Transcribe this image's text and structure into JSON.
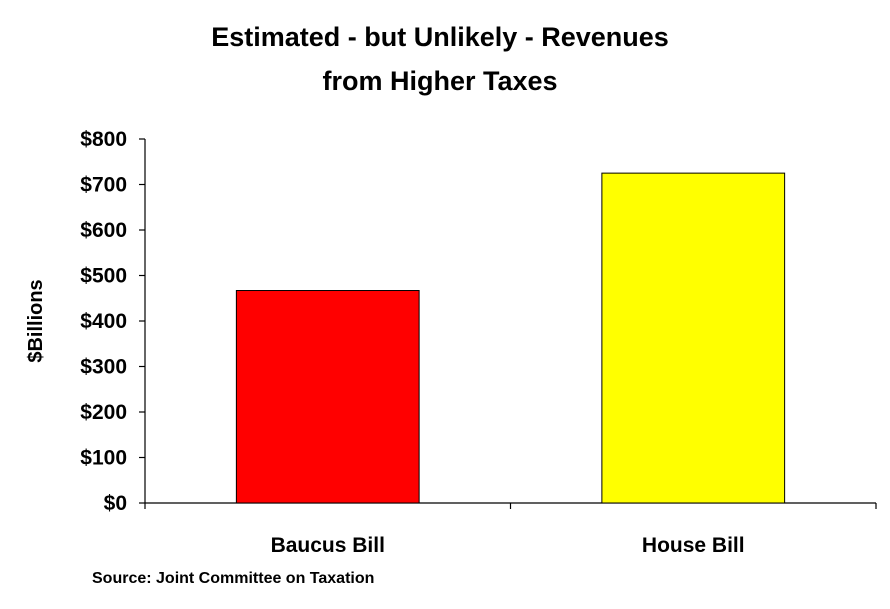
{
  "chart_data": {
    "type": "bar",
    "title_line1": "Estimated - but Unlikely - Revenues",
    "title_line2": "from Higher Taxes",
    "ylabel": "$Billions",
    "categories": [
      "Baucus Bill",
      "House Bill"
    ],
    "values": [
      467,
      725
    ],
    "bar_colors": [
      "#ff0000",
      "#ffff00"
    ],
    "ylim": [
      0,
      800
    ],
    "yticks": [
      0,
      100,
      200,
      300,
      400,
      500,
      600,
      700,
      800
    ],
    "ytick_labels": [
      "$0",
      "$100",
      "$200",
      "$300",
      "$400",
      "$500",
      "$600",
      "$700",
      "$800"
    ],
    "grid": false,
    "legend": "none"
  },
  "source": "Source: Joint Committee on Taxation"
}
